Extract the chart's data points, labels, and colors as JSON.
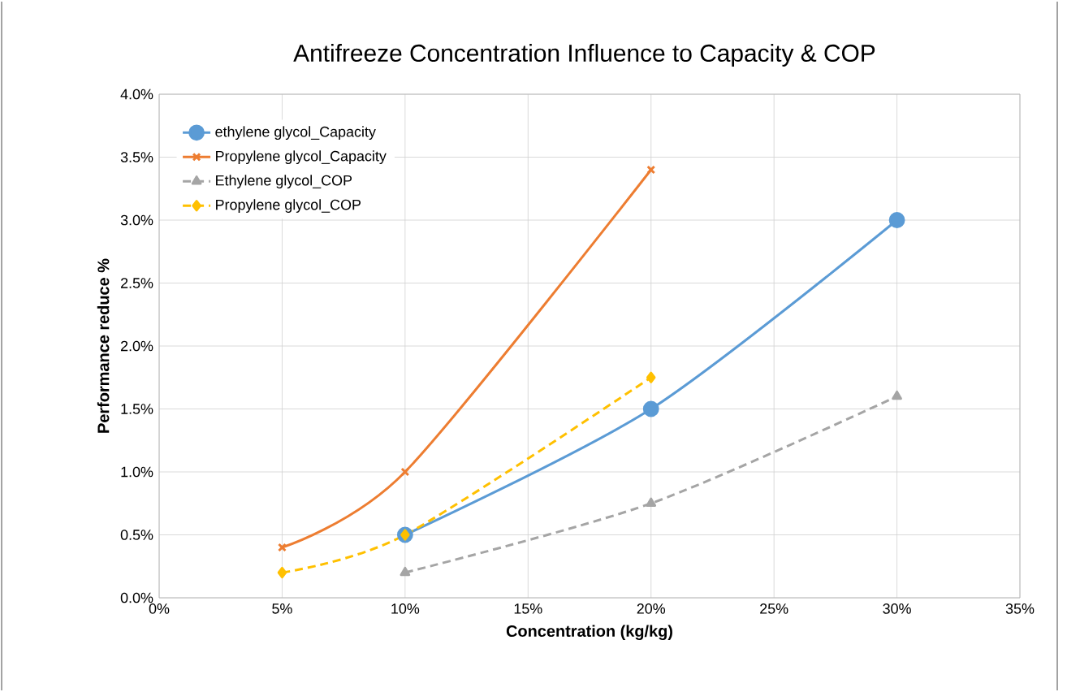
{
  "chart_data": {
    "type": "line",
    "title": "Antifreeze Concentration Influence to Capacity & COP",
    "xlabel": "Concentration (kg/kg)",
    "ylabel": "Performance reduce %",
    "series": [
      {
        "name": "ethylene glycol_Capacity",
        "color": "#5b9bd5",
        "x": [
          10,
          20,
          30
        ],
        "values": [
          0.5,
          1.5,
          3.0
        ],
        "marker": "circle",
        "line_style": "solid"
      },
      {
        "name": "Propylene glycol_Capacity",
        "color": "#ed7d31",
        "x": [
          5,
          10,
          20
        ],
        "values": [
          0.4,
          1.0,
          3.4
        ],
        "marker": "cross",
        "line_style": "solid"
      },
      {
        "name": "Ethylene glycol_COP",
        "color": "#a5a5a5",
        "x": [
          10,
          20,
          30
        ],
        "values": [
          0.2,
          0.75,
          1.6
        ],
        "marker": "triangle",
        "line_style": "dashed"
      },
      {
        "name": "Propylene glycol_COP",
        "color": "#ffc000",
        "x": [
          5,
          10,
          20
        ],
        "values": [
          0.2,
          0.5,
          1.75
        ],
        "marker": "diamond",
        "line_style": "dashed"
      }
    ],
    "xlim": [
      0,
      35
    ],
    "xticks": [
      {
        "value": 0,
        "label": "0%"
      },
      {
        "value": 5,
        "label": "5%"
      },
      {
        "value": 10,
        "label": "10%"
      },
      {
        "value": 15,
        "label": "15%"
      },
      {
        "value": 20,
        "label": "20%"
      },
      {
        "value": 25,
        "label": "25%"
      },
      {
        "value": 30,
        "label": "30%"
      },
      {
        "value": 35,
        "label": "35%"
      }
    ],
    "ylim": [
      0,
      4
    ],
    "yticks": [
      {
        "value": 0,
        "label": "0.0%"
      },
      {
        "value": 0.5,
        "label": "0.5%"
      },
      {
        "value": 1,
        "label": "1.0%"
      },
      {
        "value": 1.5,
        "label": "1.5%"
      },
      {
        "value": 2,
        "label": "2.0%"
      },
      {
        "value": 2.5,
        "label": "2.5%"
      },
      {
        "value": 3,
        "label": "3.0%"
      },
      {
        "value": 3.5,
        "label": "3.5%"
      },
      {
        "value": 4,
        "label": "4.0%"
      }
    ],
    "grid": true,
    "legend": "top left"
  }
}
